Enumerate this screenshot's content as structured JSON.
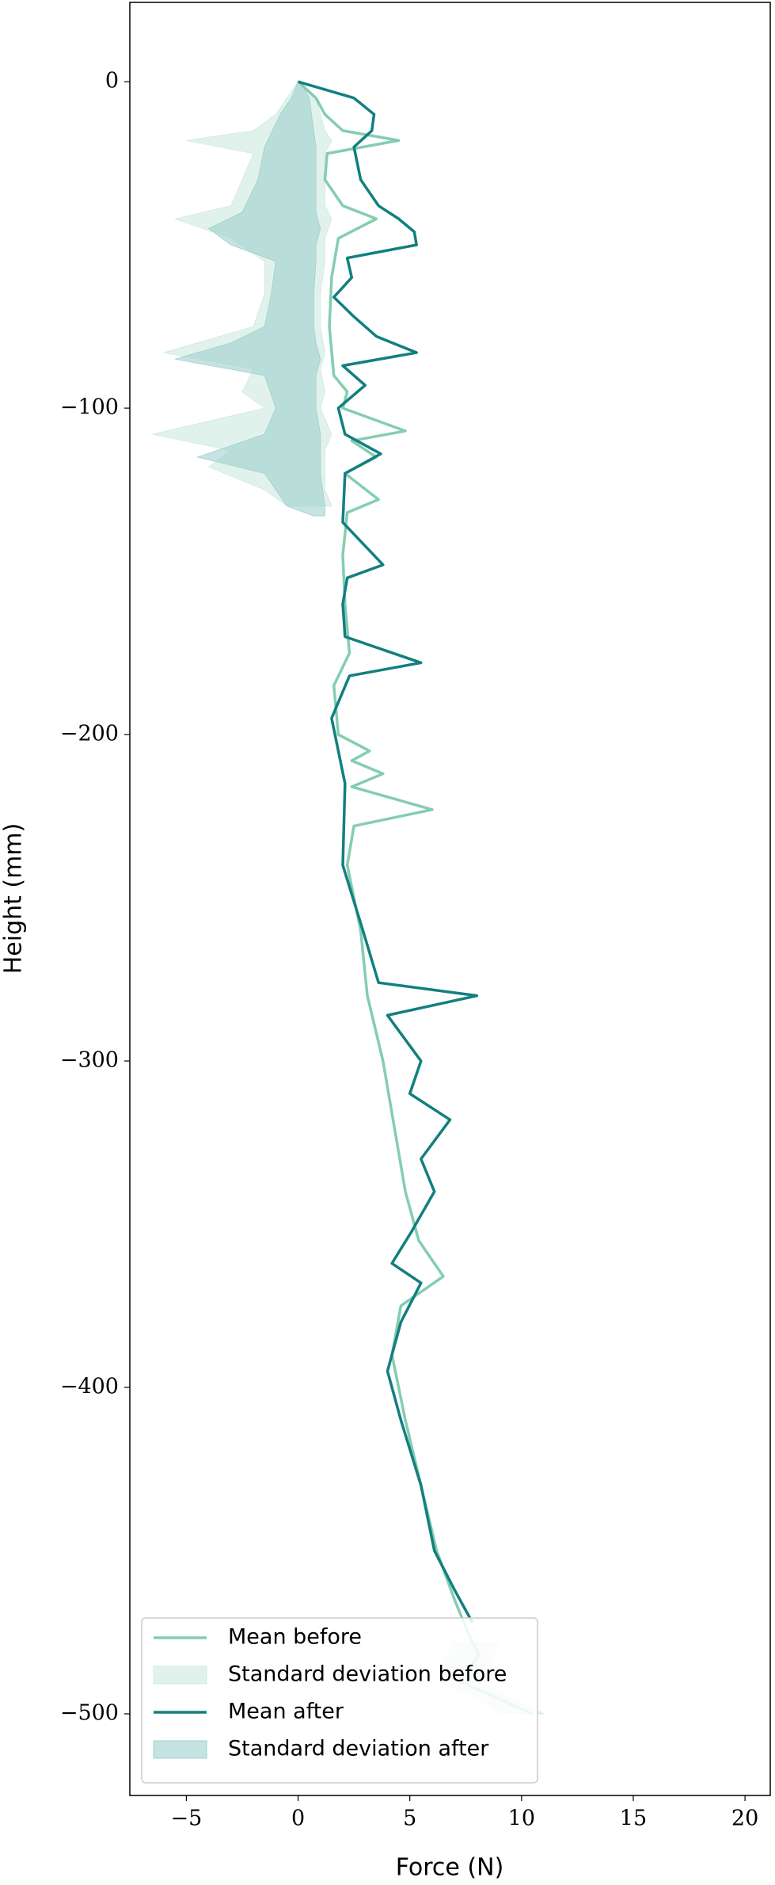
{
  "chart_data": {
    "type": "line",
    "xlabel": "Force (N)",
    "ylabel": "Height (mm)",
    "xlim": [
      -7.53,
      21.13
    ],
    "ylim": [
      -525,
      24.3
    ],
    "xticks": [
      {
        "value": -5,
        "label": "−5"
      },
      0,
      5,
      10,
      15,
      20
    ],
    "yticks": [
      0,
      {
        "value": -100,
        "label": "−100"
      },
      {
        "value": -200,
        "label": "−200"
      },
      {
        "value": -300,
        "label": "−300"
      },
      {
        "value": -400,
        "label": "−400"
      },
      {
        "value": -500,
        "label": "−500"
      }
    ],
    "legend": "lower left",
    "series": [
      {
        "name": "Mean before",
        "color": "#84cdb1",
        "y": [
          0,
          -5,
          -10,
          -15,
          -18,
          -22,
          -30,
          -38,
          -42,
          -48,
          -60,
          -75,
          -90,
          -95,
          -100,
          -107,
          -110,
          -115,
          -120,
          -128,
          -132,
          -145,
          -160,
          -175,
          -185,
          -200,
          -205,
          -208,
          -212,
          -216,
          -223,
          -228,
          -240,
          -260,
          -280,
          -300,
          -320,
          -340,
          -355,
          -366,
          -375,
          -390,
          -410,
          -430,
          -450,
          -465,
          -475,
          -482,
          -490,
          -500
        ],
        "values": [
          0,
          0.8,
          1.2,
          2,
          4.5,
          1.3,
          1.2,
          2,
          3.5,
          1.8,
          1.5,
          1.4,
          1.6,
          2.2,
          2,
          4.8,
          2.4,
          3.5,
          2.1,
          3.6,
          2.2,
          2,
          2.1,
          2.3,
          1.6,
          1.8,
          3.2,
          2.4,
          3.8,
          2.4,
          6,
          2.5,
          2.2,
          2.8,
          3.1,
          3.8,
          4.3,
          4.8,
          5.4,
          6.5,
          4.6,
          4.2,
          4.8,
          5.5,
          6.2,
          7,
          7.6,
          8.1,
          7.2,
          10.5
        ]
      },
      {
        "name": "Standard deviation before",
        "color": "#cdeadf",
        "y": [
          0,
          -5,
          -10,
          -15,
          -18,
          -22,
          -30,
          -38,
          -42,
          -48,
          -55,
          -65,
          -75,
          -83,
          -88,
          -95,
          -100,
          -108,
          -113,
          -118,
          -125,
          -130,
          null,
          -478,
          -485,
          -490,
          -495,
          -500
        ],
        "lower": [
          0,
          -0.5,
          -1,
          -2,
          -5,
          -2,
          -2.5,
          -3,
          -5.5,
          -3,
          -1.5,
          -1.5,
          -2,
          -6,
          -2,
          -2.5,
          -1.5,
          -6.5,
          -3,
          -4,
          -1.5,
          -0.5,
          null,
          7,
          6.5,
          6.2,
          8,
          9
        ],
        "upper": [
          0.1,
          0.8,
          1,
          1.2,
          1.5,
          1.2,
          1.2,
          1.2,
          1.5,
          1.2,
          1.2,
          1,
          1,
          1.2,
          1,
          1.2,
          1,
          1.5,
          1.2,
          1.2,
          1.2,
          1.5,
          null,
          9,
          8.5,
          8,
          9.5,
          11
        ]
      },
      {
        "name": "Mean after",
        "color": "#137f7f",
        "y": [
          0,
          -5,
          -10,
          -15,
          -20,
          -30,
          -38,
          -42,
          -46,
          -50,
          -54,
          -60,
          -66,
          -72,
          -78,
          -83,
          -87,
          -93,
          -100,
          -108,
          -114,
          -120,
          -135,
          -148,
          -152,
          -160,
          -170,
          -178,
          -182,
          -195,
          -215,
          -240,
          -260,
          -276,
          -280,
          -286,
          -300,
          -310,
          -318,
          -330,
          -340,
          -352,
          -362,
          -368,
          -380,
          -395,
          -410,
          -430,
          -450,
          -462,
          -472
        ],
        "values": [
          0,
          2.5,
          3.4,
          3.3,
          2.5,
          2.8,
          3.6,
          4.5,
          5.2,
          5.3,
          2.2,
          2.4,
          1.6,
          2.5,
          3.5,
          5.3,
          2,
          3,
          1.8,
          2.1,
          3.7,
          2.1,
          2,
          3.8,
          2.2,
          2,
          2.1,
          5.5,
          2.3,
          1.5,
          2.1,
          2,
          2.9,
          3.6,
          8,
          4,
          5.5,
          5,
          6.8,
          5.5,
          6.1,
          5.1,
          4.2,
          5.5,
          4.6,
          4,
          4.6,
          5.5,
          6.1,
          7,
          7.8
        ]
      },
      {
        "name": "Standard deviation after",
        "color": "#9fd0cf",
        "y": [
          0,
          -5,
          -10,
          -20,
          -30,
          -40,
          -45,
          -50,
          -55,
          -65,
          -75,
          -80,
          -85,
          -90,
          -100,
          -108,
          -115,
          -120,
          -130,
          -133
        ],
        "lower": [
          0,
          -0.3,
          -0.8,
          -1.5,
          -1.8,
          -2.5,
          -4,
          -3,
          -1,
          -1.2,
          -1.5,
          -3,
          -5.5,
          -1.5,
          -1,
          -1.5,
          -4.5,
          -1.5,
          -0.5,
          0.7
        ],
        "upper": [
          0.1,
          0.5,
          0.6,
          0.8,
          0.8,
          0.8,
          1,
          0.8,
          0.8,
          0.7,
          0.7,
          0.8,
          1,
          0.8,
          0.8,
          1,
          1,
          1,
          1.2,
          1.2
        ]
      }
    ]
  }
}
